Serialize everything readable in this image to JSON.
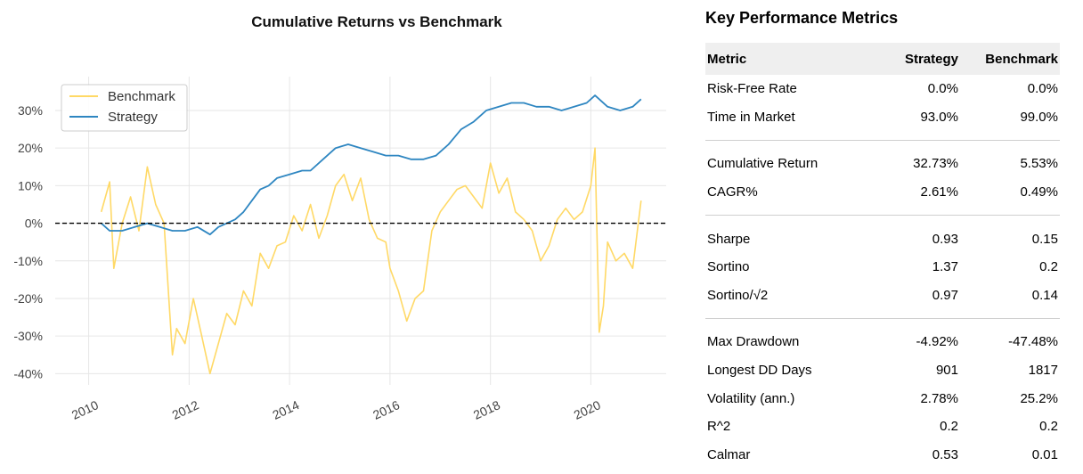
{
  "chart_data": {
    "type": "line",
    "title": "Cumulative Returns vs Benchmark",
    "x_tick_labels": [
      "2010",
      "2012",
      "2014",
      "2016",
      "2018",
      "2020"
    ],
    "y_tick_labels": [
      "30%",
      "20%",
      "10%",
      "0%",
      "-10%",
      "-20%",
      "-30%",
      "-40%"
    ],
    "ylim": [
      -0.43,
      0.39
    ],
    "xlim": [
      "2009-05",
      "2021-07"
    ],
    "grid": true,
    "legend_position": "top-left",
    "baseline": 0,
    "series": [
      {
        "name": "Benchmark",
        "color": "#ffd966",
        "x": [
          "2010-04",
          "2010-06",
          "2010-07",
          "2010-09",
          "2010-11",
          "2011-01",
          "2011-03",
          "2011-05",
          "2011-07",
          "2011-09",
          "2011-10",
          "2011-12",
          "2012-02",
          "2012-04",
          "2012-06",
          "2012-08",
          "2012-10",
          "2012-12",
          "2013-02",
          "2013-04",
          "2013-06",
          "2013-08",
          "2013-10",
          "2013-12",
          "2014-02",
          "2014-04",
          "2014-06",
          "2014-08",
          "2014-10",
          "2014-12",
          "2015-02",
          "2015-04",
          "2015-06",
          "2015-08",
          "2015-10",
          "2015-12",
          "2016-01",
          "2016-03",
          "2016-05",
          "2016-07",
          "2016-09",
          "2016-11",
          "2017-01",
          "2017-03",
          "2017-05",
          "2017-07",
          "2017-09",
          "2017-11",
          "2018-01",
          "2018-03",
          "2018-05",
          "2018-07",
          "2018-09",
          "2018-11",
          "2019-01",
          "2019-03",
          "2019-05",
          "2019-07",
          "2019-09",
          "2019-11",
          "2020-01",
          "2020-02",
          "2020-03",
          "2020-04",
          "2020-05",
          "2020-07",
          "2020-09",
          "2020-11",
          "2021-01"
        ],
        "values": [
          0.03,
          0.11,
          -0.12,
          0.0,
          0.07,
          -0.02,
          0.15,
          0.05,
          0.0,
          -0.35,
          -0.28,
          -0.32,
          -0.2,
          -0.3,
          -0.4,
          -0.32,
          -0.24,
          -0.27,
          -0.18,
          -0.22,
          -0.08,
          -0.12,
          -0.06,
          -0.05,
          0.02,
          -0.02,
          0.05,
          -0.04,
          0.02,
          0.1,
          0.13,
          0.06,
          0.12,
          0.01,
          -0.04,
          -0.05,
          -0.12,
          -0.18,
          -0.26,
          -0.2,
          -0.18,
          -0.02,
          0.03,
          0.06,
          0.09,
          0.1,
          0.07,
          0.04,
          0.16,
          0.08,
          0.12,
          0.03,
          0.01,
          -0.02,
          -0.1,
          -0.06,
          0.01,
          0.04,
          0.01,
          0.03,
          0.1,
          0.2,
          -0.29,
          -0.22,
          -0.05,
          -0.1,
          -0.08,
          -0.12,
          0.06
        ]
      },
      {
        "name": "Strategy",
        "color": "#2e86c1",
        "x": [
          "2010-04",
          "2010-06",
          "2010-09",
          "2010-12",
          "2011-03",
          "2011-06",
          "2011-09",
          "2011-12",
          "2012-03",
          "2012-06",
          "2012-08",
          "2012-10",
          "2012-12",
          "2013-02",
          "2013-04",
          "2013-06",
          "2013-08",
          "2013-10",
          "2014-01",
          "2014-04",
          "2014-06",
          "2014-09",
          "2014-12",
          "2015-03",
          "2015-06",
          "2015-09",
          "2015-12",
          "2016-03",
          "2016-06",
          "2016-09",
          "2016-12",
          "2017-03",
          "2017-06",
          "2017-09",
          "2017-12",
          "2018-03",
          "2018-06",
          "2018-09",
          "2018-12",
          "2019-03",
          "2019-06",
          "2019-09",
          "2019-12",
          "2020-02",
          "2020-03",
          "2020-05",
          "2020-08",
          "2020-11",
          "2021-01"
        ],
        "values": [
          0.0,
          -0.02,
          -0.02,
          -0.01,
          0.0,
          -0.01,
          -0.02,
          -0.02,
          -0.01,
          -0.03,
          -0.01,
          0.0,
          0.01,
          0.03,
          0.06,
          0.09,
          0.1,
          0.12,
          0.13,
          0.14,
          0.14,
          0.17,
          0.2,
          0.21,
          0.2,
          0.19,
          0.18,
          0.18,
          0.17,
          0.17,
          0.18,
          0.21,
          0.25,
          0.27,
          0.3,
          0.31,
          0.32,
          0.32,
          0.31,
          0.31,
          0.3,
          0.31,
          0.32,
          0.34,
          0.33,
          0.31,
          0.3,
          0.31,
          0.33
        ]
      }
    ]
  },
  "metrics": {
    "title": "Key Performance Metrics",
    "columns": [
      "Metric",
      "Strategy",
      "Benchmark"
    ],
    "groups": [
      [
        {
          "metric": "Risk-Free Rate",
          "strategy": "0.0%",
          "benchmark": "0.0%"
        },
        {
          "metric": "Time in Market",
          "strategy": "93.0%",
          "benchmark": "99.0%"
        }
      ],
      [
        {
          "metric": "Cumulative Return",
          "strategy": "32.73%",
          "benchmark": "5.53%"
        },
        {
          "metric": "CAGR%",
          "strategy": "2.61%",
          "benchmark": "0.49%"
        }
      ],
      [
        {
          "metric": "Sharpe",
          "strategy": "0.93",
          "benchmark": "0.15"
        },
        {
          "metric": "Sortino",
          "strategy": "1.37",
          "benchmark": "0.2"
        },
        {
          "metric": "Sortino/√2",
          "strategy": "0.97",
          "benchmark": "0.14"
        }
      ],
      [
        {
          "metric": "Max Drawdown",
          "strategy": "-4.92%",
          "benchmark": "-47.48%"
        },
        {
          "metric": "Longest DD Days",
          "strategy": "901",
          "benchmark": "1817"
        },
        {
          "metric": "Volatility (ann.)",
          "strategy": "2.78%",
          "benchmark": "25.2%"
        },
        {
          "metric": "R^2",
          "strategy": "0.2",
          "benchmark": "0.2"
        },
        {
          "metric": "Calmar",
          "strategy": "0.53",
          "benchmark": "0.01"
        }
      ]
    ]
  }
}
